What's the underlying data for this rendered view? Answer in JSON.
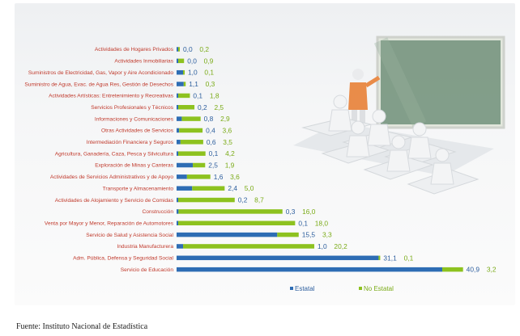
{
  "chart_data": {
    "type": "bar",
    "orientation": "horizontal",
    "categories": [
      "Actividades de Hogares Privados",
      "Actividades Inmobiliarias",
      "Suministros de Electricidad, Gas, Vapor y Aire Acondicionado",
      "Suministro de Agua, Evac. de Agua Res, Gestión de Desechos",
      "Actividades Artísticas: Entretenimiento y Recreativas",
      "Servicios Profesionales y Técnicos",
      "Informaciones y Comunicaciones",
      "Otras Actividades de Servicios",
      "Intermediación Financiera y Seguros",
      "Agricultura, Ganadería, Caza, Pesca y Silvicultura",
      "Exploración de Minas y Canteras",
      "Actividades de Servicios Administrativos y de Apoyo",
      "Transporte y Almacenamiento",
      "Actividades de Alojamiento y Servicio de Comidas",
      "Construcción",
      "Venta por Mayor y Menor, Reparación de Automotores",
      "Servicio de Salud y Asistencia Social",
      "Industria Manufacturera",
      "Adm. Pública, Defensa y Seguridad Social",
      "Servicio de Educación"
    ],
    "series": [
      {
        "name": "Estatal",
        "color": "#2e6db4",
        "values": [
          0.0,
          0.0,
          1.0,
          1.1,
          0.1,
          0.2,
          0.8,
          0.4,
          0.6,
          0.1,
          2.5,
          1.6,
          2.4,
          0.2,
          0.3,
          0.1,
          15.5,
          1.0,
          31.1,
          40.9
        ],
        "labels": [
          "0,0",
          "0,0",
          "1,0",
          "1,1",
          "0,1",
          "0,2",
          "0,8",
          "0,4",
          "0,6",
          "0,1",
          "2,5",
          "1,6",
          "2,4",
          "0,2",
          "0,3",
          "0,1",
          "15,5",
          "1,0",
          "31,1",
          "40,9"
        ]
      },
      {
        "name": "No Estatal",
        "color": "#8dc21f",
        "values": [
          0.2,
          0.9,
          0.1,
          0.3,
          1.8,
          2.5,
          2.9,
          3.6,
          3.5,
          4.2,
          1.9,
          3.6,
          5.0,
          8.7,
          16.0,
          18.0,
          3.3,
          20.2,
          0.1,
          3.2
        ],
        "labels": [
          "0,2",
          "0,9",
          "0,1",
          "0,3",
          "1,8",
          "2,5",
          "2,9",
          "3,6",
          "3,5",
          "4,2",
          "1,9",
          "3,6",
          "5,0",
          "8,7",
          "16,0",
          "18,0",
          "3,3",
          "20,2",
          "0,1",
          "3,2"
        ]
      }
    ],
    "stacked": true,
    "legend_position": "bottom",
    "grid": false
  },
  "source_note": "Fuente: Instituto Nacional de Estadística"
}
